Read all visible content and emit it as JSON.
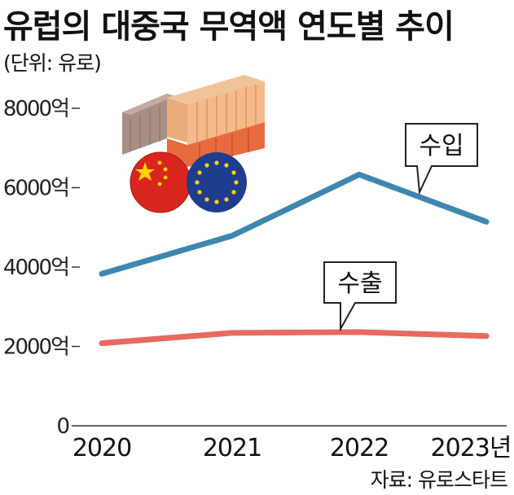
{
  "header": {
    "title": "유럽의 대중국 무역액 연도별 추이",
    "unit": "(단위: 유로)"
  },
  "footer": {
    "source": "자료: 유로스타트"
  },
  "colors": {
    "import": "#3f86b0",
    "export": "#e86a60",
    "axis": "#333333"
  },
  "illustration": {
    "icons": [
      "shipping-containers-icon",
      "china-flag-icon",
      "eu-flag-icon"
    ]
  },
  "chart_data": {
    "type": "line",
    "title": "유럽의 대중국 무역액 연도별 추이",
    "categories": [
      "2020",
      "2021",
      "2022",
      "2023년"
    ],
    "y_ticks": [
      "0",
      "2000억",
      "4000억",
      "6000억",
      "8000억"
    ],
    "ylim": [
      0,
      8000
    ],
    "ylabel": "(단위: 유로)",
    "grid": false,
    "series": [
      {
        "name": "수입",
        "values": [
          3830,
          4790,
          6330,
          5140
        ]
      },
      {
        "name": "수출",
        "values": [
          2080,
          2340,
          2360,
          2260
        ]
      }
    ]
  }
}
